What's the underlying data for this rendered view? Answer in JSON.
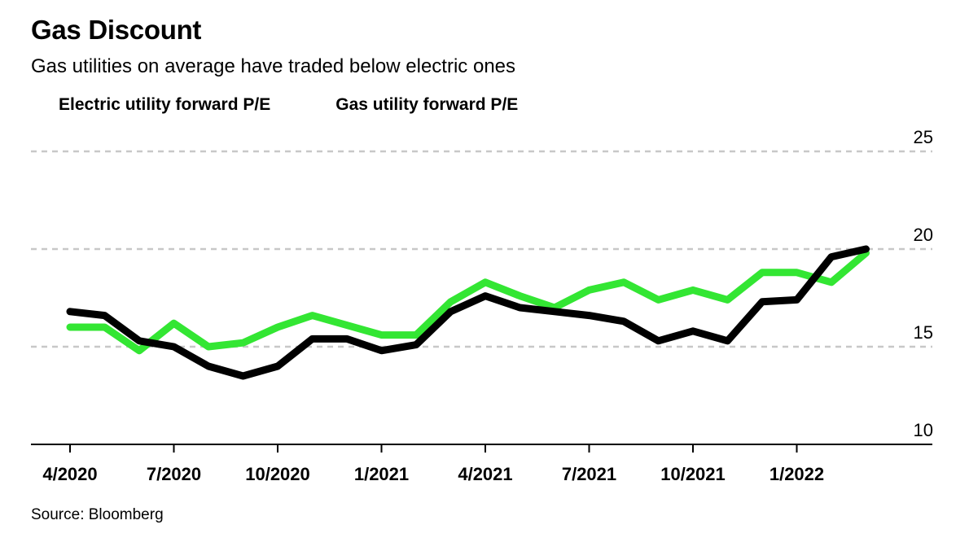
{
  "header": {
    "title": "Gas Discount",
    "subtitle": "Gas utilities on average have traded below electric ones"
  },
  "footer": {
    "source": "Source: Bloomberg"
  },
  "colors": {
    "electric": "#000000",
    "gas": "#33e633",
    "grid": "#c8c8c8",
    "axis": "#000000"
  },
  "chart_data": {
    "type": "line",
    "title": "Gas Discount",
    "subtitle": "Gas utilities on average have traded below electric ones",
    "x_tick_labels": [
      "4/2020",
      "7/2020",
      "10/2020",
      "1/2021",
      "4/2021",
      "7/2021",
      "10/2021",
      "1/2022"
    ],
    "y_ticks": [
      10,
      15,
      20,
      25
    ],
    "ylim": [
      10,
      25
    ],
    "y_axis_position": "right",
    "grid": true,
    "legend_position": "top-left",
    "x": [
      "2020-04",
      "2020-05",
      "2020-06",
      "2020-07",
      "2020-08",
      "2020-09",
      "2020-10",
      "2020-11",
      "2020-12",
      "2021-01",
      "2021-02",
      "2021-03",
      "2021-04",
      "2021-05",
      "2021-06",
      "2021-07",
      "2021-08",
      "2021-09",
      "2021-10",
      "2021-11",
      "2021-12",
      "2022-01",
      "2022-02",
      "2022-03"
    ],
    "series": [
      {
        "name": "Electric utility forward P/E",
        "color": "#000000",
        "values": [
          16.8,
          16.6,
          15.3,
          15.0,
          14.0,
          13.5,
          14.0,
          15.4,
          15.4,
          14.8,
          15.1,
          16.8,
          17.6,
          17.0,
          16.8,
          16.6,
          16.3,
          15.3,
          15.8,
          15.3,
          17.3,
          17.4,
          19.6,
          20.0
        ]
      },
      {
        "name": "Gas utility forward P/E",
        "color": "#33e633",
        "values": [
          16.0,
          16.0,
          14.8,
          16.2,
          15.0,
          15.2,
          16.0,
          16.6,
          16.1,
          15.6,
          15.6,
          17.3,
          18.3,
          17.6,
          17.0,
          17.9,
          18.3,
          17.4,
          17.9,
          17.4,
          18.8,
          18.8,
          18.3,
          19.8
        ]
      }
    ]
  }
}
